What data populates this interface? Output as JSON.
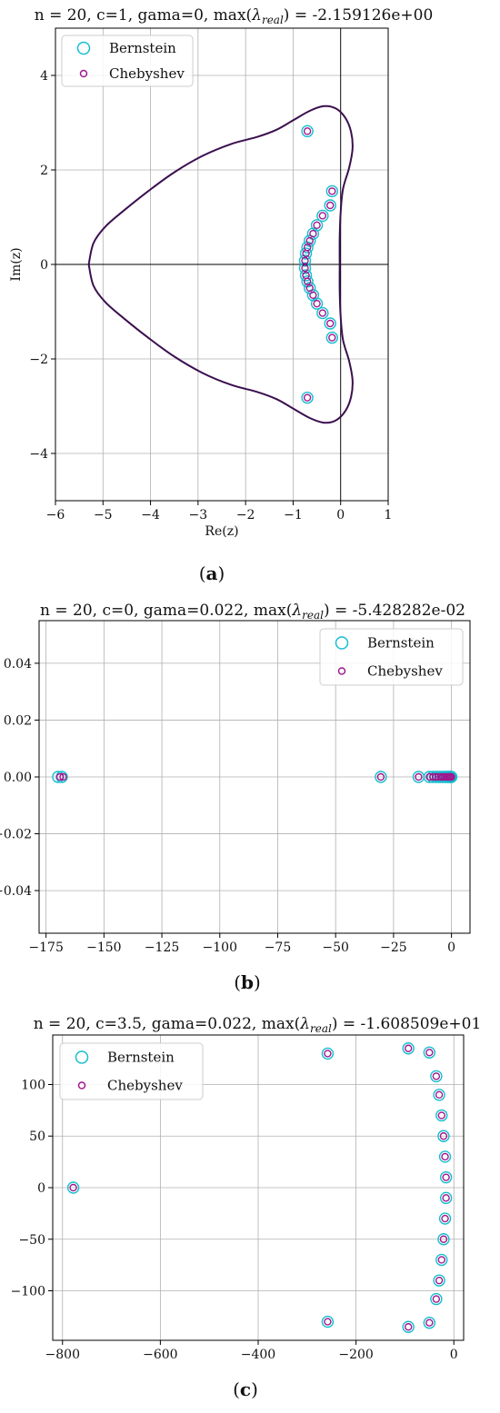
{
  "chart_data": [
    {
      "type": "scatter",
      "title": "n = 20, c=1, gama=0, max(λreal) = -2.159126e+00",
      "title_prefix": "n = 20, c=1, gama=0, max(",
      "title_lambda": "λ",
      "title_sub": "real",
      "title_suffix": ") = -2.159126e+00",
      "xlabel": "Re(z)",
      "ylabel": "Im(z)",
      "xlim": [
        -6,
        1
      ],
      "ylim": [
        -5,
        5
      ],
      "xticks": [
        -6,
        -5,
        -4,
        -3,
        -2,
        -1,
        0,
        1
      ],
      "xtick_labels": [
        "−6",
        "−5",
        "−4",
        "−3",
        "−2",
        "−1",
        "0",
        "1"
      ],
      "yticks": [
        -4,
        -2,
        0,
        2,
        4
      ],
      "ytick_labels": [
        "−4",
        "−2",
        "0",
        "2",
        "4"
      ],
      "grid": true,
      "axes_lines": true,
      "legend_position": "top-left",
      "caption": "a",
      "stability_boundary": [
        [
          -5.3,
          0
        ],
        [
          -5.2,
          0.45
        ],
        [
          -4.95,
          0.8
        ],
        [
          -4.55,
          1.15
        ],
        [
          -4.05,
          1.55
        ],
        [
          -3.5,
          1.95
        ],
        [
          -2.9,
          2.3
        ],
        [
          -2.3,
          2.55
        ],
        [
          -1.75,
          2.7
        ],
        [
          -1.35,
          2.85
        ],
        [
          -1.0,
          3.05
        ],
        [
          -0.65,
          3.25
        ],
        [
          -0.35,
          3.35
        ],
        [
          -0.1,
          3.3
        ],
        [
          0.1,
          3.1
        ],
        [
          0.22,
          2.8
        ],
        [
          0.25,
          2.45
        ],
        [
          0.18,
          2.05
        ],
        [
          0.05,
          1.6
        ],
        [
          0.0,
          1.1
        ],
        [
          -0.02,
          0.55
        ],
        [
          -0.02,
          0
        ],
        [
          -0.02,
          -0.55
        ],
        [
          0.0,
          -1.1
        ],
        [
          0.05,
          -1.6
        ],
        [
          0.18,
          -2.05
        ],
        [
          0.25,
          -2.45
        ],
        [
          0.22,
          -2.8
        ],
        [
          0.1,
          -3.1
        ],
        [
          -0.1,
          -3.3
        ],
        [
          -0.35,
          -3.35
        ],
        [
          -0.65,
          -3.25
        ],
        [
          -1.0,
          -3.05
        ],
        [
          -1.35,
          -2.85
        ],
        [
          -1.75,
          -2.7
        ],
        [
          -2.3,
          -2.55
        ],
        [
          -2.9,
          -2.3
        ],
        [
          -3.5,
          -1.95
        ],
        [
          -4.05,
          -1.55
        ],
        [
          -4.55,
          -1.15
        ],
        [
          -4.95,
          -0.8
        ],
        [
          -5.2,
          -0.45
        ],
        [
          -5.3,
          0
        ]
      ],
      "series": [
        {
          "name": "Bernstein",
          "color": "#17becf",
          "marker": "open-circle-large",
          "points": [
            [
              -0.7,
              2.82
            ],
            [
              -0.18,
              1.55
            ],
            [
              -0.22,
              1.25
            ],
            [
              -0.38,
              1.03
            ],
            [
              -0.5,
              0.83
            ],
            [
              -0.58,
              0.65
            ],
            [
              -0.65,
              0.5
            ],
            [
              -0.7,
              0.36
            ],
            [
              -0.73,
              0.23
            ],
            [
              -0.75,
              0.08
            ],
            [
              -0.75,
              -0.08
            ],
            [
              -0.73,
              -0.23
            ],
            [
              -0.7,
              -0.36
            ],
            [
              -0.65,
              -0.5
            ],
            [
              -0.58,
              -0.65
            ],
            [
              -0.5,
              -0.83
            ],
            [
              -0.38,
              -1.03
            ],
            [
              -0.22,
              -1.25
            ],
            [
              -0.18,
              -1.55
            ],
            [
              -0.7,
              -2.82
            ]
          ]
        },
        {
          "name": "Chebyshev",
          "color": "#a0198f",
          "marker": "open-circle-small",
          "points": [
            [
              -0.7,
              2.82
            ],
            [
              -0.18,
              1.55
            ],
            [
              -0.22,
              1.25
            ],
            [
              -0.38,
              1.03
            ],
            [
              -0.5,
              0.83
            ],
            [
              -0.58,
              0.65
            ],
            [
              -0.65,
              0.5
            ],
            [
              -0.7,
              0.36
            ],
            [
              -0.73,
              0.23
            ],
            [
              -0.75,
              0.08
            ],
            [
              -0.75,
              -0.08
            ],
            [
              -0.73,
              -0.23
            ],
            [
              -0.7,
              -0.36
            ],
            [
              -0.65,
              -0.5
            ],
            [
              -0.58,
              -0.65
            ],
            [
              -0.5,
              -0.83
            ],
            [
              -0.38,
              -1.03
            ],
            [
              -0.22,
              -1.25
            ],
            [
              -0.18,
              -1.55
            ],
            [
              -0.7,
              -2.82
            ]
          ]
        }
      ]
    },
    {
      "type": "scatter",
      "title": "n = 20, c=0, gama=0.022, max(λreal) = -5.428282e-02",
      "title_prefix": "n = 20, c=0, gama=0.022, max(",
      "title_lambda": "λ",
      "title_sub": "real",
      "title_suffix": ") = -5.428282e-02",
      "xlim": [
        -178,
        8
      ],
      "ylim": [
        -0.055,
        0.055
      ],
      "xticks": [
        -175,
        -150,
        -125,
        -100,
        -75,
        -50,
        -25,
        0
      ],
      "xtick_labels": [
        "−175",
        "−150",
        "−125",
        "−100",
        "−75",
        "−50",
        "−25",
        "0"
      ],
      "yticks": [
        -0.04,
        -0.02,
        0.0,
        0.02,
        0.04
      ],
      "ytick_labels": [
        "−0.04",
        "−0.02",
        "0.00",
        "0.02",
        "0.04"
      ],
      "grid": true,
      "legend_position": "top-right",
      "caption": "b",
      "series": [
        {
          "name": "Bernstein",
          "color": "#17becf",
          "marker": "open-circle-large",
          "points": [
            [
              -169.8,
              0
            ],
            [
              -168.2,
              0
            ],
            [
              -30.5,
              0
            ],
            [
              -14.2,
              0
            ],
            [
              -9.5,
              0
            ],
            [
              -8.0,
              0
            ],
            [
              -6.8,
              0
            ],
            [
              -5.6,
              0
            ],
            [
              -4.6,
              0
            ],
            [
              -3.7,
              0
            ],
            [
              -2.9,
              0
            ],
            [
              -2.2,
              0
            ],
            [
              -1.6,
              0
            ],
            [
              -1.1,
              0
            ],
            [
              -0.7,
              0
            ],
            [
              -0.4,
              0
            ],
            [
              -0.2,
              0
            ],
            [
              -0.1,
              0
            ],
            [
              -0.05,
              0
            ]
          ]
        },
        {
          "name": "Chebyshev",
          "color": "#a0198f",
          "marker": "open-circle-small",
          "points": [
            [
              -169.0,
              0
            ],
            [
              -167.6,
              0
            ],
            [
              -30.5,
              0
            ],
            [
              -14.2,
              0
            ],
            [
              -9.5,
              0
            ],
            [
              -8.0,
              0
            ],
            [
              -6.8,
              0
            ],
            [
              -5.6,
              0
            ],
            [
              -4.6,
              0
            ],
            [
              -3.7,
              0
            ],
            [
              -2.9,
              0
            ],
            [
              -2.2,
              0
            ],
            [
              -1.6,
              0
            ],
            [
              -1.1,
              0
            ],
            [
              -0.7,
              0
            ],
            [
              -0.4,
              0
            ],
            [
              -0.2,
              0
            ],
            [
              -0.1,
              0
            ],
            [
              -0.05,
              0
            ]
          ]
        }
      ]
    },
    {
      "type": "scatter",
      "title": "n = 20, c=3.5, gama=0.022, max(λreal) = -1.608509e+01",
      "title_prefix": "n = 20, c=3.5, gama=0.022, max(",
      "title_lambda": "λ",
      "title_sub": "real",
      "title_suffix": ") = -1.608509e+01",
      "xlim": [
        -820,
        20
      ],
      "ylim": [
        -148,
        148
      ],
      "xticks": [
        -800,
        -600,
        -400,
        -200,
        0
      ],
      "xtick_labels": [
        "−800",
        "−600",
        "−400",
        "−200",
        "0"
      ],
      "yticks": [
        -100,
        -50,
        0,
        50,
        100
      ],
      "ytick_labels": [
        "−100",
        "−50",
        "0",
        "50",
        "100"
      ],
      "grid": true,
      "legend_position": "top-left",
      "caption": "c",
      "series": [
        {
          "name": "Bernstein",
          "color": "#17becf",
          "marker": "open-circle-large",
          "points": [
            [
              -778,
              0
            ],
            [
              -258,
              130
            ],
            [
              -258,
              -130
            ],
            [
              -93,
              135
            ],
            [
              -93,
              -135
            ],
            [
              -50,
              131
            ],
            [
              -50,
              -131
            ],
            [
              -36,
              108
            ],
            [
              -36,
              -108
            ],
            [
              -30,
              90
            ],
            [
              -30,
              -90
            ],
            [
              -25,
              70
            ],
            [
              -25,
              -70
            ],
            [
              -21,
              50
            ],
            [
              -21,
              -50
            ],
            [
              -18,
              30
            ],
            [
              -18,
              -30
            ],
            [
              -16,
              10
            ],
            [
              -16,
              -10
            ]
          ]
        },
        {
          "name": "Chebyshev",
          "color": "#a0198f",
          "marker": "open-circle-small",
          "points": [
            [
              -778,
              0
            ],
            [
              -258,
              130
            ],
            [
              -258,
              -130
            ],
            [
              -93,
              135
            ],
            [
              -93,
              -135
            ],
            [
              -50,
              131
            ],
            [
              -50,
              -131
            ],
            [
              -36,
              108
            ],
            [
              -36,
              -108
            ],
            [
              -30,
              90
            ],
            [
              -30,
              -90
            ],
            [
              -25,
              70
            ],
            [
              -25,
              -70
            ],
            [
              -21,
              50
            ],
            [
              -21,
              -50
            ],
            [
              -18,
              30
            ],
            [
              -18,
              -30
            ],
            [
              -16,
              10
            ],
            [
              -16,
              -10
            ]
          ]
        }
      ]
    }
  ]
}
